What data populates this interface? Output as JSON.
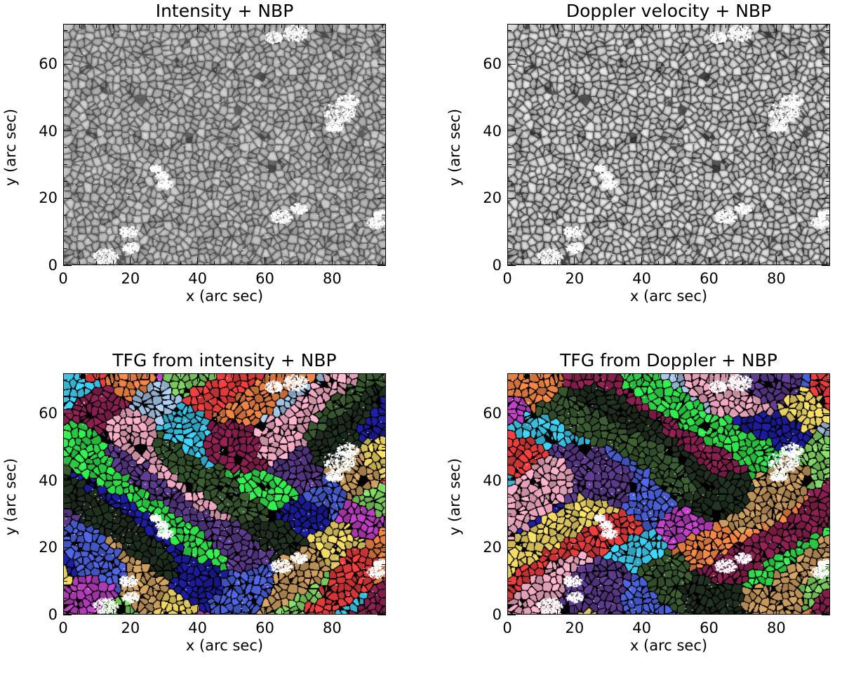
{
  "figure": {
    "panels": [
      {
        "id": "intensity",
        "title": "Intensity + NBP",
        "xlabel": "x (arc sec)",
        "ylabel": "y (arc sec)",
        "xticks": [
          "0",
          "20",
          "40",
          "60",
          "80"
        ],
        "yticks": [
          "0",
          "20",
          "40",
          "60"
        ],
        "xlim": [
          0,
          96
        ],
        "ylim": [
          0,
          72
        ],
        "image_type": "grayscale granulation with white network bright points"
      },
      {
        "id": "doppler",
        "title": "Doppler velocity + NBP",
        "xlabel": "x (arc sec)",
        "ylabel": "y (arc sec)",
        "xticks": [
          "0",
          "20",
          "40",
          "60",
          "80"
        ],
        "yticks": [
          "0",
          "20",
          "40",
          "60"
        ],
        "xlim": [
          0,
          96
        ],
        "ylim": [
          0,
          72
        ],
        "image_type": "grayscale doppler map with white network bright points"
      },
      {
        "id": "tfg-intensity",
        "title": "TFG from intensity + NBP",
        "xlabel": "x (arc sec)",
        "ylabel": "y (arc sec)",
        "xticks": [
          "0",
          "20",
          "40",
          "60",
          "80"
        ],
        "yticks": [
          "0",
          "20",
          "40",
          "60"
        ],
        "xlim": [
          0,
          96
        ],
        "ylim": [
          0,
          72
        ],
        "image_type": "colored TFG families on black with white network bright points"
      },
      {
        "id": "tfg-doppler",
        "title": "TFG from Doppler + NBP",
        "xlabel": "x (arc sec)",
        "ylabel": "y (arc sec)",
        "xticks": [
          "0",
          "20",
          "40",
          "60",
          "80"
        ],
        "yticks": [
          "0",
          "20",
          "40",
          "60"
        ],
        "xlim": [
          0,
          96
        ],
        "ylim": [
          0,
          72
        ],
        "image_type": "colored TFG families on black with white network bright points"
      }
    ],
    "colors": {
      "background": "#ffffff",
      "axis": "#000000",
      "nbp": "#ffffff",
      "tfg_palette": [
        "#e23b3b",
        "#2ee04a",
        "#b93dc0",
        "#f0a8c0",
        "#c79a5c",
        "#3ac6e8",
        "#1c1c9c",
        "#e88040",
        "#5a3a8a",
        "#7fd060",
        "#3a5a30",
        "#e8d060",
        "#8a2050",
        "#4a60d8",
        "#a0c0e0",
        "#203020"
      ]
    }
  }
}
